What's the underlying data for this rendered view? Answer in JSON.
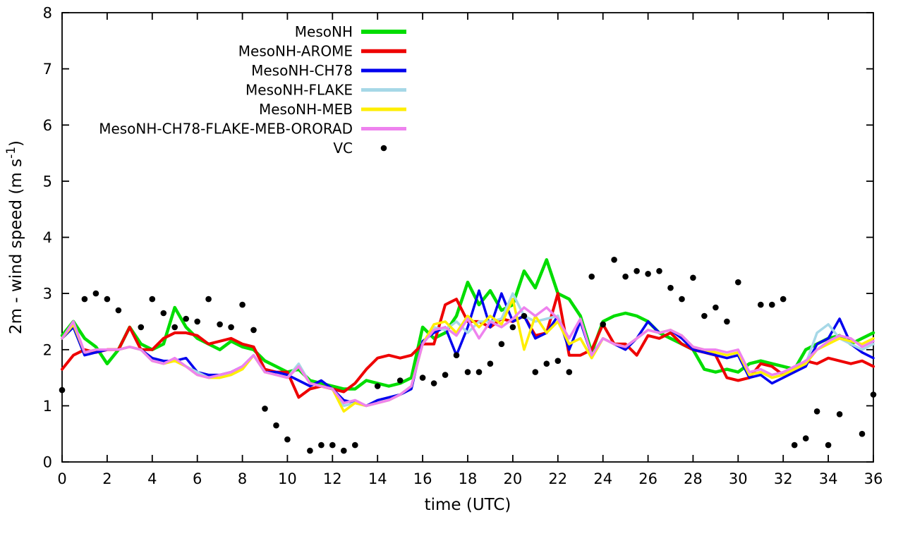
{
  "page": {
    "background": "#ffffff"
  },
  "chart_data": {
    "type": "line",
    "title": "",
    "xlabel": "time (UTC)",
    "ylabel_parts": [
      "2m - wind speed  (m s",
      "-1",
      ")"
    ],
    "xlim": [
      0,
      36
    ],
    "ylim": [
      0,
      8
    ],
    "xtick_step": 2,
    "ytick_step": 1,
    "grid": false,
    "legend_position": "top-center-inside",
    "x_step": 0.5,
    "series": [
      {
        "name": "MesoNH",
        "color": "#00dd00",
        "width": 4.5,
        "values": [
          2.25,
          2.5,
          2.2,
          2.05,
          1.75,
          2.0,
          2.4,
          2.1,
          2.0,
          2.1,
          2.75,
          2.4,
          2.2,
          2.1,
          2.0,
          2.15,
          2.05,
          2.0,
          1.8,
          1.7,
          1.6,
          1.65,
          1.45,
          1.4,
          1.35,
          1.3,
          1.3,
          1.45,
          1.4,
          1.35,
          1.4,
          1.5,
          2.4,
          2.2,
          2.3,
          2.6,
          3.2,
          2.8,
          3.05,
          2.7,
          2.8,
          3.4,
          3.1,
          3.6,
          3.0,
          2.9,
          2.6,
          1.95,
          2.5,
          2.6,
          2.65,
          2.6,
          2.5,
          2.3,
          2.2,
          2.1,
          2.0,
          1.65,
          1.6,
          1.65,
          1.6,
          1.75,
          1.8,
          1.75,
          1.7,
          1.65,
          2.0,
          2.1,
          2.2,
          2.25,
          2.1,
          2.2,
          2.3
        ]
      },
      {
        "name": "MesoNH-AROME",
        "color": "#ee0000",
        "width": 4,
        "values": [
          1.65,
          1.9,
          2.0,
          1.95,
          2.0,
          2.0,
          2.4,
          2.0,
          2.0,
          2.2,
          2.3,
          2.3,
          2.25,
          2.1,
          2.15,
          2.2,
          2.1,
          2.05,
          1.65,
          1.6,
          1.6,
          1.15,
          1.3,
          1.35,
          1.3,
          1.25,
          1.4,
          1.65,
          1.85,
          1.9,
          1.85,
          1.9,
          2.1,
          2.1,
          2.8,
          2.9,
          2.5,
          2.5,
          2.4,
          2.55,
          2.5,
          2.6,
          2.25,
          2.3,
          3.0,
          1.9,
          1.9,
          2.0,
          2.45,
          2.1,
          2.1,
          1.9,
          2.25,
          2.2,
          2.3,
          2.1,
          2.0,
          1.95,
          1.9,
          1.5,
          1.45,
          1.5,
          1.75,
          1.7,
          1.55,
          1.65,
          1.8,
          1.75,
          1.85,
          1.8,
          1.75,
          1.8,
          1.7
        ]
      },
      {
        "name": "MesoNH-CH78",
        "color": "#0000ee",
        "width": 3.5,
        "values": [
          2.2,
          2.4,
          1.9,
          1.95,
          2.0,
          2.0,
          2.05,
          2.0,
          1.85,
          1.8,
          1.8,
          1.85,
          1.6,
          1.55,
          1.55,
          1.6,
          1.7,
          1.9,
          1.6,
          1.6,
          1.55,
          1.45,
          1.35,
          1.45,
          1.3,
          1.1,
          1.05,
          1.0,
          1.1,
          1.15,
          1.2,
          1.3,
          2.15,
          2.3,
          2.4,
          1.9,
          2.4,
          3.05,
          2.4,
          3.0,
          2.5,
          2.6,
          2.2,
          2.3,
          2.6,
          2.0,
          2.5,
          1.9,
          2.2,
          2.1,
          2.0,
          2.2,
          2.5,
          2.3,
          2.35,
          2.2,
          2.0,
          1.95,
          1.9,
          1.85,
          1.9,
          1.5,
          1.55,
          1.4,
          1.5,
          1.6,
          1.7,
          2.1,
          2.2,
          2.55,
          2.1,
          1.95,
          1.85
        ]
      },
      {
        "name": "MesoNH-FLAKE",
        "color": "#a6d8e7",
        "width": 3.5,
        "values": [
          2.2,
          2.45,
          1.95,
          2.0,
          2.0,
          2.0,
          2.05,
          2.0,
          1.8,
          1.75,
          1.8,
          1.7,
          1.6,
          1.5,
          1.5,
          1.55,
          1.65,
          1.9,
          1.6,
          1.55,
          1.5,
          1.75,
          1.4,
          1.35,
          1.3,
          1.0,
          1.05,
          1.0,
          1.05,
          1.1,
          1.2,
          1.35,
          2.1,
          2.4,
          2.35,
          2.5,
          2.3,
          2.5,
          2.5,
          2.55,
          3.0,
          2.6,
          2.5,
          2.55,
          2.6,
          2.1,
          2.2,
          1.85,
          2.2,
          2.1,
          2.05,
          2.2,
          2.35,
          2.3,
          2.35,
          2.25,
          2.05,
          2.0,
          1.95,
          1.9,
          1.95,
          1.55,
          1.6,
          1.5,
          1.55,
          1.65,
          1.75,
          2.3,
          2.45,
          2.2,
          2.1,
          2.0,
          2.1
        ]
      },
      {
        "name": "MesoNH-MEB",
        "color": "#ffee00",
        "width": 3.5,
        "values": [
          2.2,
          2.45,
          1.95,
          2.0,
          2.0,
          2.0,
          2.05,
          2.0,
          1.8,
          1.75,
          1.8,
          1.7,
          1.55,
          1.5,
          1.5,
          1.55,
          1.65,
          1.9,
          1.6,
          1.55,
          1.5,
          1.7,
          1.4,
          1.35,
          1.3,
          0.9,
          1.05,
          1.0,
          1.05,
          1.1,
          1.2,
          1.35,
          2.1,
          2.45,
          2.5,
          2.3,
          2.6,
          2.4,
          2.6,
          2.45,
          2.9,
          2.0,
          2.6,
          2.3,
          2.5,
          2.1,
          2.2,
          1.85,
          2.2,
          2.1,
          2.05,
          2.2,
          2.35,
          2.3,
          2.35,
          2.25,
          2.05,
          2.0,
          1.95,
          1.9,
          1.95,
          1.55,
          1.6,
          1.5,
          1.55,
          1.65,
          1.75,
          2.0,
          2.1,
          2.2,
          2.15,
          2.1,
          2.2
        ]
      },
      {
        "name": "MesoNH-CH78-FLAKE-MEB-ORORAD",
        "color": "#ee82ee",
        "width": 3.5,
        "values": [
          2.2,
          2.5,
          1.95,
          2.0,
          2.0,
          2.0,
          2.05,
          2.0,
          1.8,
          1.75,
          1.85,
          1.7,
          1.55,
          1.5,
          1.55,
          1.6,
          1.7,
          1.9,
          1.6,
          1.55,
          1.5,
          1.7,
          1.4,
          1.35,
          1.3,
          1.05,
          1.1,
          1.0,
          1.05,
          1.1,
          1.2,
          1.35,
          2.1,
          2.35,
          2.4,
          2.25,
          2.55,
          2.2,
          2.5,
          2.4,
          2.55,
          2.75,
          2.6,
          2.75,
          2.55,
          2.2,
          2.55,
          1.9,
          2.2,
          2.1,
          2.05,
          2.2,
          2.35,
          2.3,
          2.35,
          2.25,
          2.05,
          2.0,
          2.0,
          1.95,
          2.0,
          1.6,
          1.65,
          1.55,
          1.6,
          1.7,
          1.8,
          2.0,
          2.15,
          2.25,
          2.2,
          2.05,
          2.15
        ]
      }
    ],
    "scatter": {
      "name": "VC",
      "color": "#000000",
      "marker": "dot",
      "points": [
        [
          0,
          1.28
        ],
        [
          1,
          2.9
        ],
        [
          1.5,
          3.0
        ],
        [
          2,
          2.9
        ],
        [
          2.5,
          2.7
        ],
        [
          3.5,
          2.4
        ],
        [
          4,
          2.9
        ],
        [
          4.5,
          2.65
        ],
        [
          5,
          2.4
        ],
        [
          5.5,
          2.55
        ],
        [
          6,
          2.5
        ],
        [
          6.5,
          2.9
        ],
        [
          7,
          2.45
        ],
        [
          7.5,
          2.4
        ],
        [
          8,
          2.8
        ],
        [
          8.5,
          2.35
        ],
        [
          9,
          0.95
        ],
        [
          9.5,
          0.65
        ],
        [
          10,
          0.4
        ],
        [
          11,
          0.2
        ],
        [
          11.5,
          0.3
        ],
        [
          12,
          0.3
        ],
        [
          12.5,
          0.2
        ],
        [
          13,
          0.3
        ],
        [
          14,
          1.35
        ],
        [
          15,
          1.45
        ],
        [
          16,
          1.5
        ],
        [
          16.5,
          1.4
        ],
        [
          17,
          1.55
        ],
        [
          17.5,
          1.9
        ],
        [
          18,
          1.6
        ],
        [
          18.5,
          1.6
        ],
        [
          19,
          1.75
        ],
        [
          19.5,
          2.1
        ],
        [
          20,
          2.4
        ],
        [
          20.5,
          2.6
        ],
        [
          21,
          1.6
        ],
        [
          21.5,
          1.75
        ],
        [
          22,
          1.8
        ],
        [
          22.5,
          1.6
        ],
        [
          23.5,
          3.3
        ],
        [
          24,
          2.45
        ],
        [
          24.5,
          3.6
        ],
        [
          25,
          3.3
        ],
        [
          25.5,
          3.4
        ],
        [
          26,
          3.35
        ],
        [
          26.5,
          3.4
        ],
        [
          27,
          3.1
        ],
        [
          27.5,
          2.9
        ],
        [
          28,
          3.28
        ],
        [
          28.5,
          2.6
        ],
        [
          29,
          2.75
        ],
        [
          29.5,
          2.5
        ],
        [
          30,
          3.2
        ],
        [
          31,
          2.8
        ],
        [
          31.5,
          2.8
        ],
        [
          32,
          2.9
        ],
        [
          32.5,
          0.3
        ],
        [
          33,
          0.42
        ],
        [
          33.5,
          0.9
        ],
        [
          34,
          0.3
        ],
        [
          34.5,
          0.85
        ],
        [
          35.5,
          0.5
        ],
        [
          36,
          1.2
        ]
      ]
    }
  }
}
